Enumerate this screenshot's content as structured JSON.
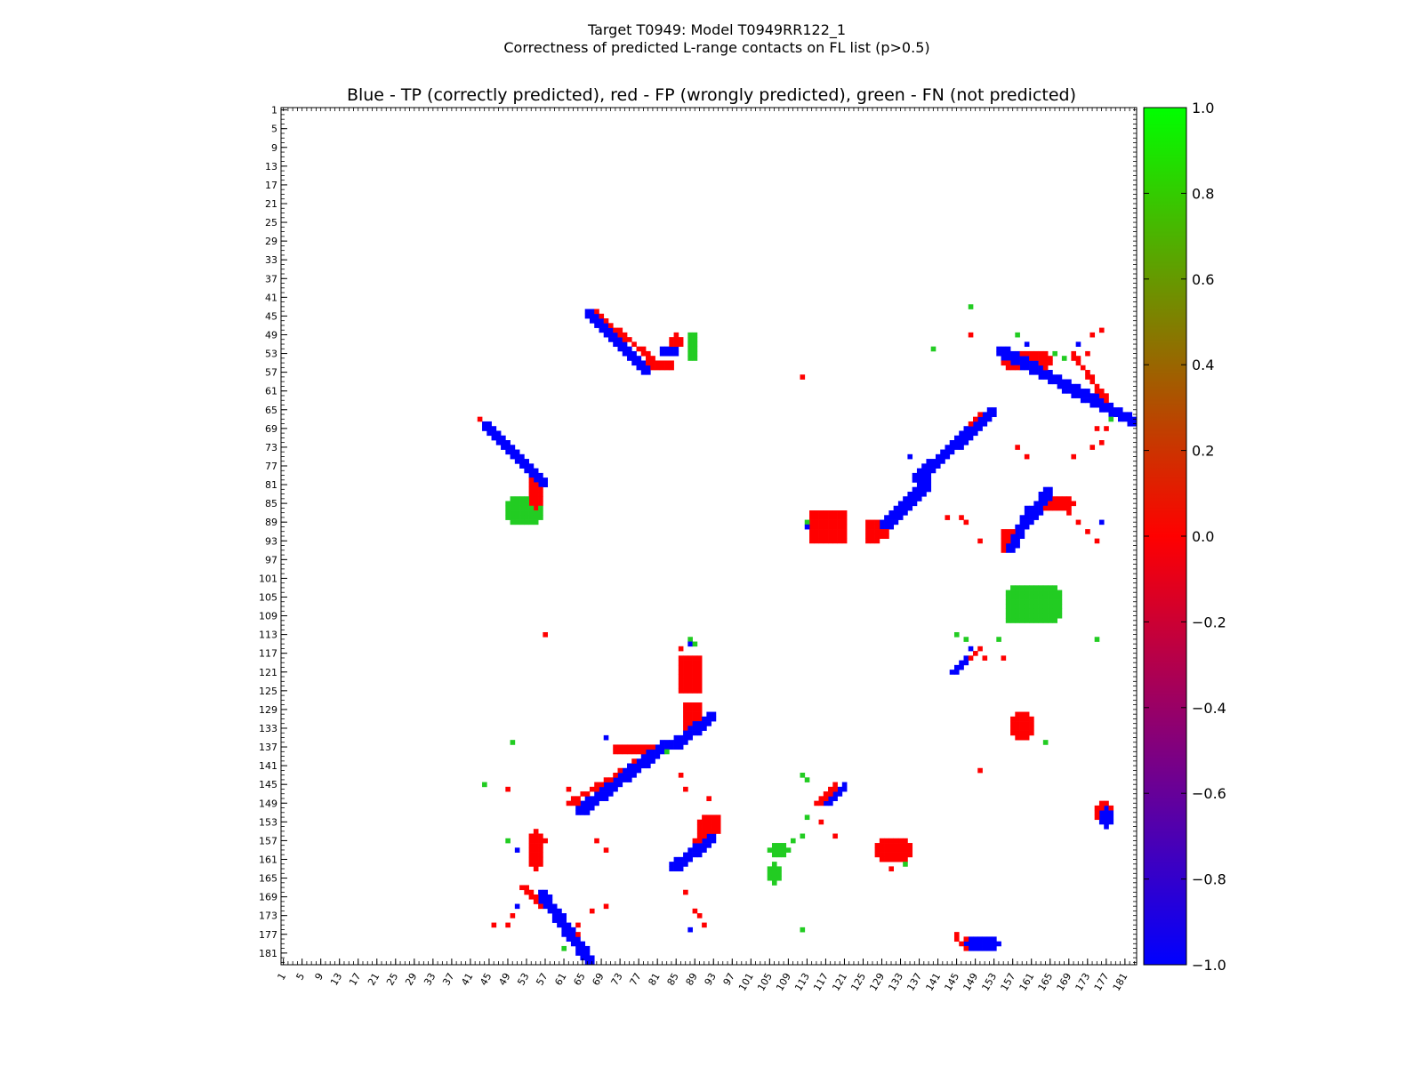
{
  "chart_data": {
    "type": "heatmap",
    "title_line1": "Target T0949: Model T0949RR122_1",
    "title_line2": "Correctness of predicted L-range contacts on FL list (p>0.5)",
    "axes_title": "Blue - TP (correctly predicted), red - FP (wrongly predicted), green - FN (not predicted)",
    "xlabel": "",
    "ylabel": "",
    "n_residues": 183,
    "tick_labels": [
      "1",
      "5",
      "9",
      "13",
      "17",
      "21",
      "25",
      "29",
      "33",
      "37",
      "41",
      "45",
      "49",
      "53",
      "57",
      "61",
      "65",
      "69",
      "73",
      "77",
      "81",
      "85",
      "89",
      "93",
      "97",
      "101",
      "105",
      "109",
      "113",
      "117",
      "121",
      "125",
      "129",
      "133",
      "137",
      "141",
      "145",
      "149",
      "153",
      "157",
      "161",
      "165",
      "169",
      "173",
      "177",
      "181"
    ],
    "colorbar": {
      "range": [
        -1.0,
        1.0
      ],
      "tick_labels": [
        "1.0",
        "0.8",
        "0.6",
        "0.4",
        "0.2",
        "0.0",
        "−0.2",
        "−0.4",
        "−0.6",
        "−0.8",
        "−1.0"
      ],
      "tick_values": [
        1.0,
        0.8,
        0.6,
        0.4,
        0.2,
        0.0,
        -0.2,
        -0.4,
        -0.6,
        -0.8,
        -1.0
      ],
      "colors": {
        "top": "#00ff00",
        "mid": "#ff0000",
        "bottom": "#0000ff"
      }
    },
    "categories": {
      "TP": {
        "value": -1,
        "color": "#0000ff"
      },
      "FP": {
        "value": 0,
        "color": "#ff0000"
      },
      "FN": {
        "value": 1,
        "color": "#22cc22"
      }
    },
    "blocks": [
      {
        "cat": "TP",
        "x": [
          66,
          78
        ],
        "y": [
          44,
          56
        ],
        "w": 2,
        "diag": 1
      },
      {
        "cat": "FP",
        "x": [
          67,
          82
        ],
        "y": [
          44,
          56
        ],
        "w": 1,
        "diag": 1
      },
      {
        "cat": "FP",
        "x": [
          78,
          84
        ],
        "y": [
          55,
          56
        ],
        "w": 1
      },
      {
        "cat": "TP",
        "x": [
          82,
          85
        ],
        "y": [
          52,
          53
        ],
        "w": 1
      },
      {
        "cat": "FN",
        "x": [
          88,
          89
        ],
        "y": [
          49,
          54
        ],
        "w": 1
      },
      {
        "cat": "FP",
        "x": [
          84,
          86
        ],
        "y": [
          49,
          52
        ],
        "w": 1
      },
      {
        "cat": "TP",
        "x": [
          44,
          56
        ],
        "y": [
          68,
          80
        ],
        "w": 2,
        "diag": 1
      },
      {
        "cat": "FP",
        "x": [
          43,
          54
        ],
        "y": [
          67,
          78
        ],
        "w": 1,
        "diag": 1
      },
      {
        "cat": "FP",
        "x": [
          54,
          56
        ],
        "y": [
          78,
          86
        ],
        "w": 1
      },
      {
        "cat": "FN",
        "x": [
          49,
          56
        ],
        "y": [
          84,
          89
        ],
        "w": 1
      },
      {
        "cat": "TP",
        "x": [
          136,
          152
        ],
        "y": [
          65,
          79
        ],
        "w": 2,
        "diag": -1
      },
      {
        "cat": "FP",
        "x": [
          139,
          150
        ],
        "y": [
          66,
          77
        ],
        "w": 1,
        "diag": -1
      },
      {
        "cat": "TP",
        "x": [
          129,
          138
        ],
        "y": [
          80,
          89
        ],
        "w": 2,
        "diag": -1
      },
      {
        "cat": "FP",
        "x": [
          126,
          136
        ],
        "y": [
          82,
          92
        ],
        "w": 2,
        "diag": -1
      },
      {
        "cat": "FP",
        "x": [
          114,
          121
        ],
        "y": [
          87,
          93
        ],
        "w": 3
      },
      {
        "cat": "FP",
        "x": [
          126,
          130
        ],
        "y": [
          89,
          92
        ],
        "w": 3
      },
      {
        "cat": "TP",
        "x": [
          156,
          160
        ],
        "y": [
          86,
          94
        ],
        "w": 2,
        "diag": -1
      },
      {
        "cat": "FP",
        "x": [
          155,
          157
        ],
        "y": [
          91,
          95
        ],
        "w": 3
      },
      {
        "cat": "TP",
        "x": [
          160,
          164
        ],
        "y": [
          82,
          88
        ],
        "w": 2,
        "diag": -1
      },
      {
        "cat": "FP",
        "x": [
          162,
          170
        ],
        "y": [
          84,
          86
        ],
        "w": 1
      },
      {
        "cat": "TP",
        "x": [
          154,
          182
        ],
        "y": [
          52,
          67
        ],
        "w": 2,
        "diag": 1
      },
      {
        "cat": "FP",
        "x": [
          155,
          165
        ],
        "y": [
          53,
          56
        ],
        "w": 1
      },
      {
        "cat": "FP",
        "x": [
          170,
          178
        ],
        "y": [
          53,
          64
        ],
        "w": 1,
        "diag": 1
      },
      {
        "cat": "FP",
        "x": [
          86,
          90
        ],
        "y": [
          118,
          125
        ],
        "w": 3
      },
      {
        "cat": "FP",
        "x": [
          87,
          90
        ],
        "y": [
          128,
          134
        ],
        "w": 3
      },
      {
        "cat": "TP",
        "x": [
          84,
          92
        ],
        "y": [
          130,
          136
        ],
        "w": 2,
        "diag": -1
      },
      {
        "cat": "TP",
        "x": [
          64,
          82
        ],
        "y": [
          136,
          150
        ],
        "w": 2,
        "diag": -1
      },
      {
        "cat": "FP",
        "x": [
          62,
          80
        ],
        "y": [
          138,
          149
        ],
        "w": 1,
        "diag": -1
      },
      {
        "cat": "FP",
        "x": [
          72,
          80
        ],
        "y": [
          137,
          138
        ],
        "w": 1
      },
      {
        "cat": "TP",
        "x": [
          84,
          92
        ],
        "y": [
          156,
          162
        ],
        "w": 2,
        "diag": -1
      },
      {
        "cat": "FP",
        "x": [
          84,
          94
        ],
        "y": [
          152,
          163
        ],
        "w": 1,
        "diag": -1
      },
      {
        "cat": "FP",
        "x": [
          90,
          94
        ],
        "y": [
          152,
          156
        ],
        "w": 2
      },
      {
        "cat": "TP",
        "x": [
          56,
          66
        ],
        "y": [
          168,
          182
        ],
        "w": 2,
        "diag": 1
      },
      {
        "cat": "FP",
        "x": [
          52,
          60
        ],
        "y": [
          167,
          174
        ],
        "w": 1,
        "diag": 1
      },
      {
        "cat": "FP",
        "x": [
          54,
          56
        ],
        "y": [
          155,
          163
        ],
        "w": 1
      },
      {
        "cat": "TP",
        "x": [
          117,
          121
        ],
        "y": [
          145,
          149
        ],
        "w": 1,
        "diag": -1
      },
      {
        "cat": "FP",
        "x": [
          115,
          119
        ],
        "y": [
          145,
          149
        ],
        "w": 1,
        "diag": -1
      },
      {
        "cat": "TP",
        "x": [
          144,
          147
        ],
        "y": [
          118,
          121
        ],
        "w": 1,
        "diag": -1
      },
      {
        "cat": "FP",
        "x": [
          145,
          150
        ],
        "y": [
          116,
          120
        ],
        "w": 1,
        "diag": -1
      },
      {
        "cat": "FN",
        "x": [
          105,
          107
        ],
        "y": [
          162,
          166
        ],
        "w": 1
      },
      {
        "cat": "FN",
        "x": [
          105,
          109
        ],
        "y": [
          158,
          160
        ],
        "w": 1
      },
      {
        "cat": "FP",
        "x": [
          128,
          135
        ],
        "y": [
          157,
          161
        ],
        "w": 1
      },
      {
        "cat": "TP",
        "x": [
          147,
          154
        ],
        "y": [
          178,
          180
        ],
        "w": 1
      },
      {
        "cat": "FP",
        "x": [
          146,
          149
        ],
        "y": [
          178,
          180
        ],
        "w": 1
      },
      {
        "cat": "TP",
        "x": [
          176,
          178
        ],
        "y": [
          150,
          154
        ],
        "w": 1
      },
      {
        "cat": "FP",
        "x": [
          175,
          178
        ],
        "y": [
          149,
          153
        ],
        "w": 1
      },
      {
        "cat": "FN",
        "x": [
          156,
          167
        ],
        "y": [
          103,
          110
        ],
        "w": 1
      },
      {
        "cat": "FP",
        "x": [
          157,
          161
        ],
        "y": [
          130,
          135
        ],
        "w": 1
      }
    ],
    "points": [
      [
        "FP",
        57,
        113
      ],
      [
        "FN",
        49,
        157
      ],
      [
        "TP",
        51,
        159
      ],
      [
        "FP",
        57,
        157
      ],
      [
        "FN",
        50,
        136
      ],
      [
        "FN",
        44,
        145
      ],
      [
        "FP",
        49,
        146
      ],
      [
        "FP",
        62,
        146
      ],
      [
        "FP",
        64,
        149
      ],
      [
        "FP",
        68,
        157
      ],
      [
        "FP",
        70,
        159
      ],
      [
        "FP",
        67,
        172
      ],
      [
        "FP",
        70,
        171
      ],
      [
        "FP",
        64,
        175
      ],
      [
        "FP",
        64,
        177
      ],
      [
        "FN",
        61,
        180
      ],
      [
        "FP",
        50,
        173
      ],
      [
        "FP",
        49,
        175
      ],
      [
        "FP",
        46,
        175
      ],
      [
        "TP",
        51,
        171
      ],
      [
        "FN",
        59,
        172
      ],
      [
        "FN",
        88,
        114
      ],
      [
        "TP",
        88,
        115
      ],
      [
        "FP",
        86,
        116
      ],
      [
        "FN",
        89,
        115
      ],
      [
        "TP",
        70,
        135
      ],
      [
        "FN",
        83,
        138
      ],
      [
        "FP",
        86,
        143
      ],
      [
        "FP",
        87,
        146
      ],
      [
        "FP",
        92,
        148
      ],
      [
        "FP",
        87,
        168
      ],
      [
        "FP",
        89,
        172
      ],
      [
        "FP",
        90,
        173
      ],
      [
        "TP",
        88,
        176
      ],
      [
        "FP",
        91,
        175
      ],
      [
        "FP",
        112,
        58
      ],
      [
        "FN",
        113,
        89
      ],
      [
        "TP",
        113,
        90
      ],
      [
        "FP",
        116,
        88
      ],
      [
        "FP",
        118,
        91
      ],
      [
        "FN",
        140,
        52
      ],
      [
        "FN",
        148,
        43
      ],
      [
        "FP",
        148,
        49
      ],
      [
        "FN",
        158,
        49
      ],
      [
        "TP",
        160,
        51
      ],
      [
        "FP",
        158,
        73
      ],
      [
        "FP",
        160,
        75
      ],
      [
        "TP",
        135,
        75
      ],
      [
        "FP",
        146,
        88
      ],
      [
        "FP",
        147,
        89
      ],
      [
        "FP",
        150,
        93
      ],
      [
        "FP",
        143,
        88
      ],
      [
        "FP",
        170,
        75
      ],
      [
        "FP",
        174,
        73
      ],
      [
        "FP",
        176,
        72
      ],
      [
        "FP",
        175,
        69
      ],
      [
        "FP",
        177,
        69
      ],
      [
        "FN",
        178,
        67
      ],
      [
        "FP",
        174,
        49
      ],
      [
        "FP",
        176,
        48
      ],
      [
        "TP",
        171,
        51
      ],
      [
        "FP",
        173,
        53
      ],
      [
        "FN",
        166,
        53
      ],
      [
        "FN",
        168,
        54
      ],
      [
        "FP",
        171,
        89
      ],
      [
        "FP",
        173,
        91
      ],
      [
        "TP",
        176,
        89
      ],
      [
        "FP",
        175,
        93
      ],
      [
        "FP",
        169,
        87
      ],
      [
        "FN",
        145,
        113
      ],
      [
        "FN",
        147,
        114
      ],
      [
        "TP",
        148,
        116
      ],
      [
        "FN",
        154,
        114
      ],
      [
        "FP",
        151,
        118
      ],
      [
        "FP",
        155,
        118
      ],
      [
        "FN",
        156,
        110
      ],
      [
        "FN",
        175,
        114
      ],
      [
        "FN",
        164,
        136
      ],
      [
        "FP",
        150,
        142
      ],
      [
        "FN",
        112,
        143
      ],
      [
        "FN",
        113,
        144
      ],
      [
        "FN",
        113,
        152
      ],
      [
        "FN",
        110,
        157
      ],
      [
        "FN",
        112,
        156
      ],
      [
        "FP",
        116,
        153
      ],
      [
        "FP",
        119,
        156
      ],
      [
        "FN",
        134,
        162
      ],
      [
        "FP",
        131,
        163
      ],
      [
        "FP",
        145,
        177
      ],
      [
        "FP",
        145,
        178
      ],
      [
        "FN",
        112,
        176
      ]
    ]
  }
}
